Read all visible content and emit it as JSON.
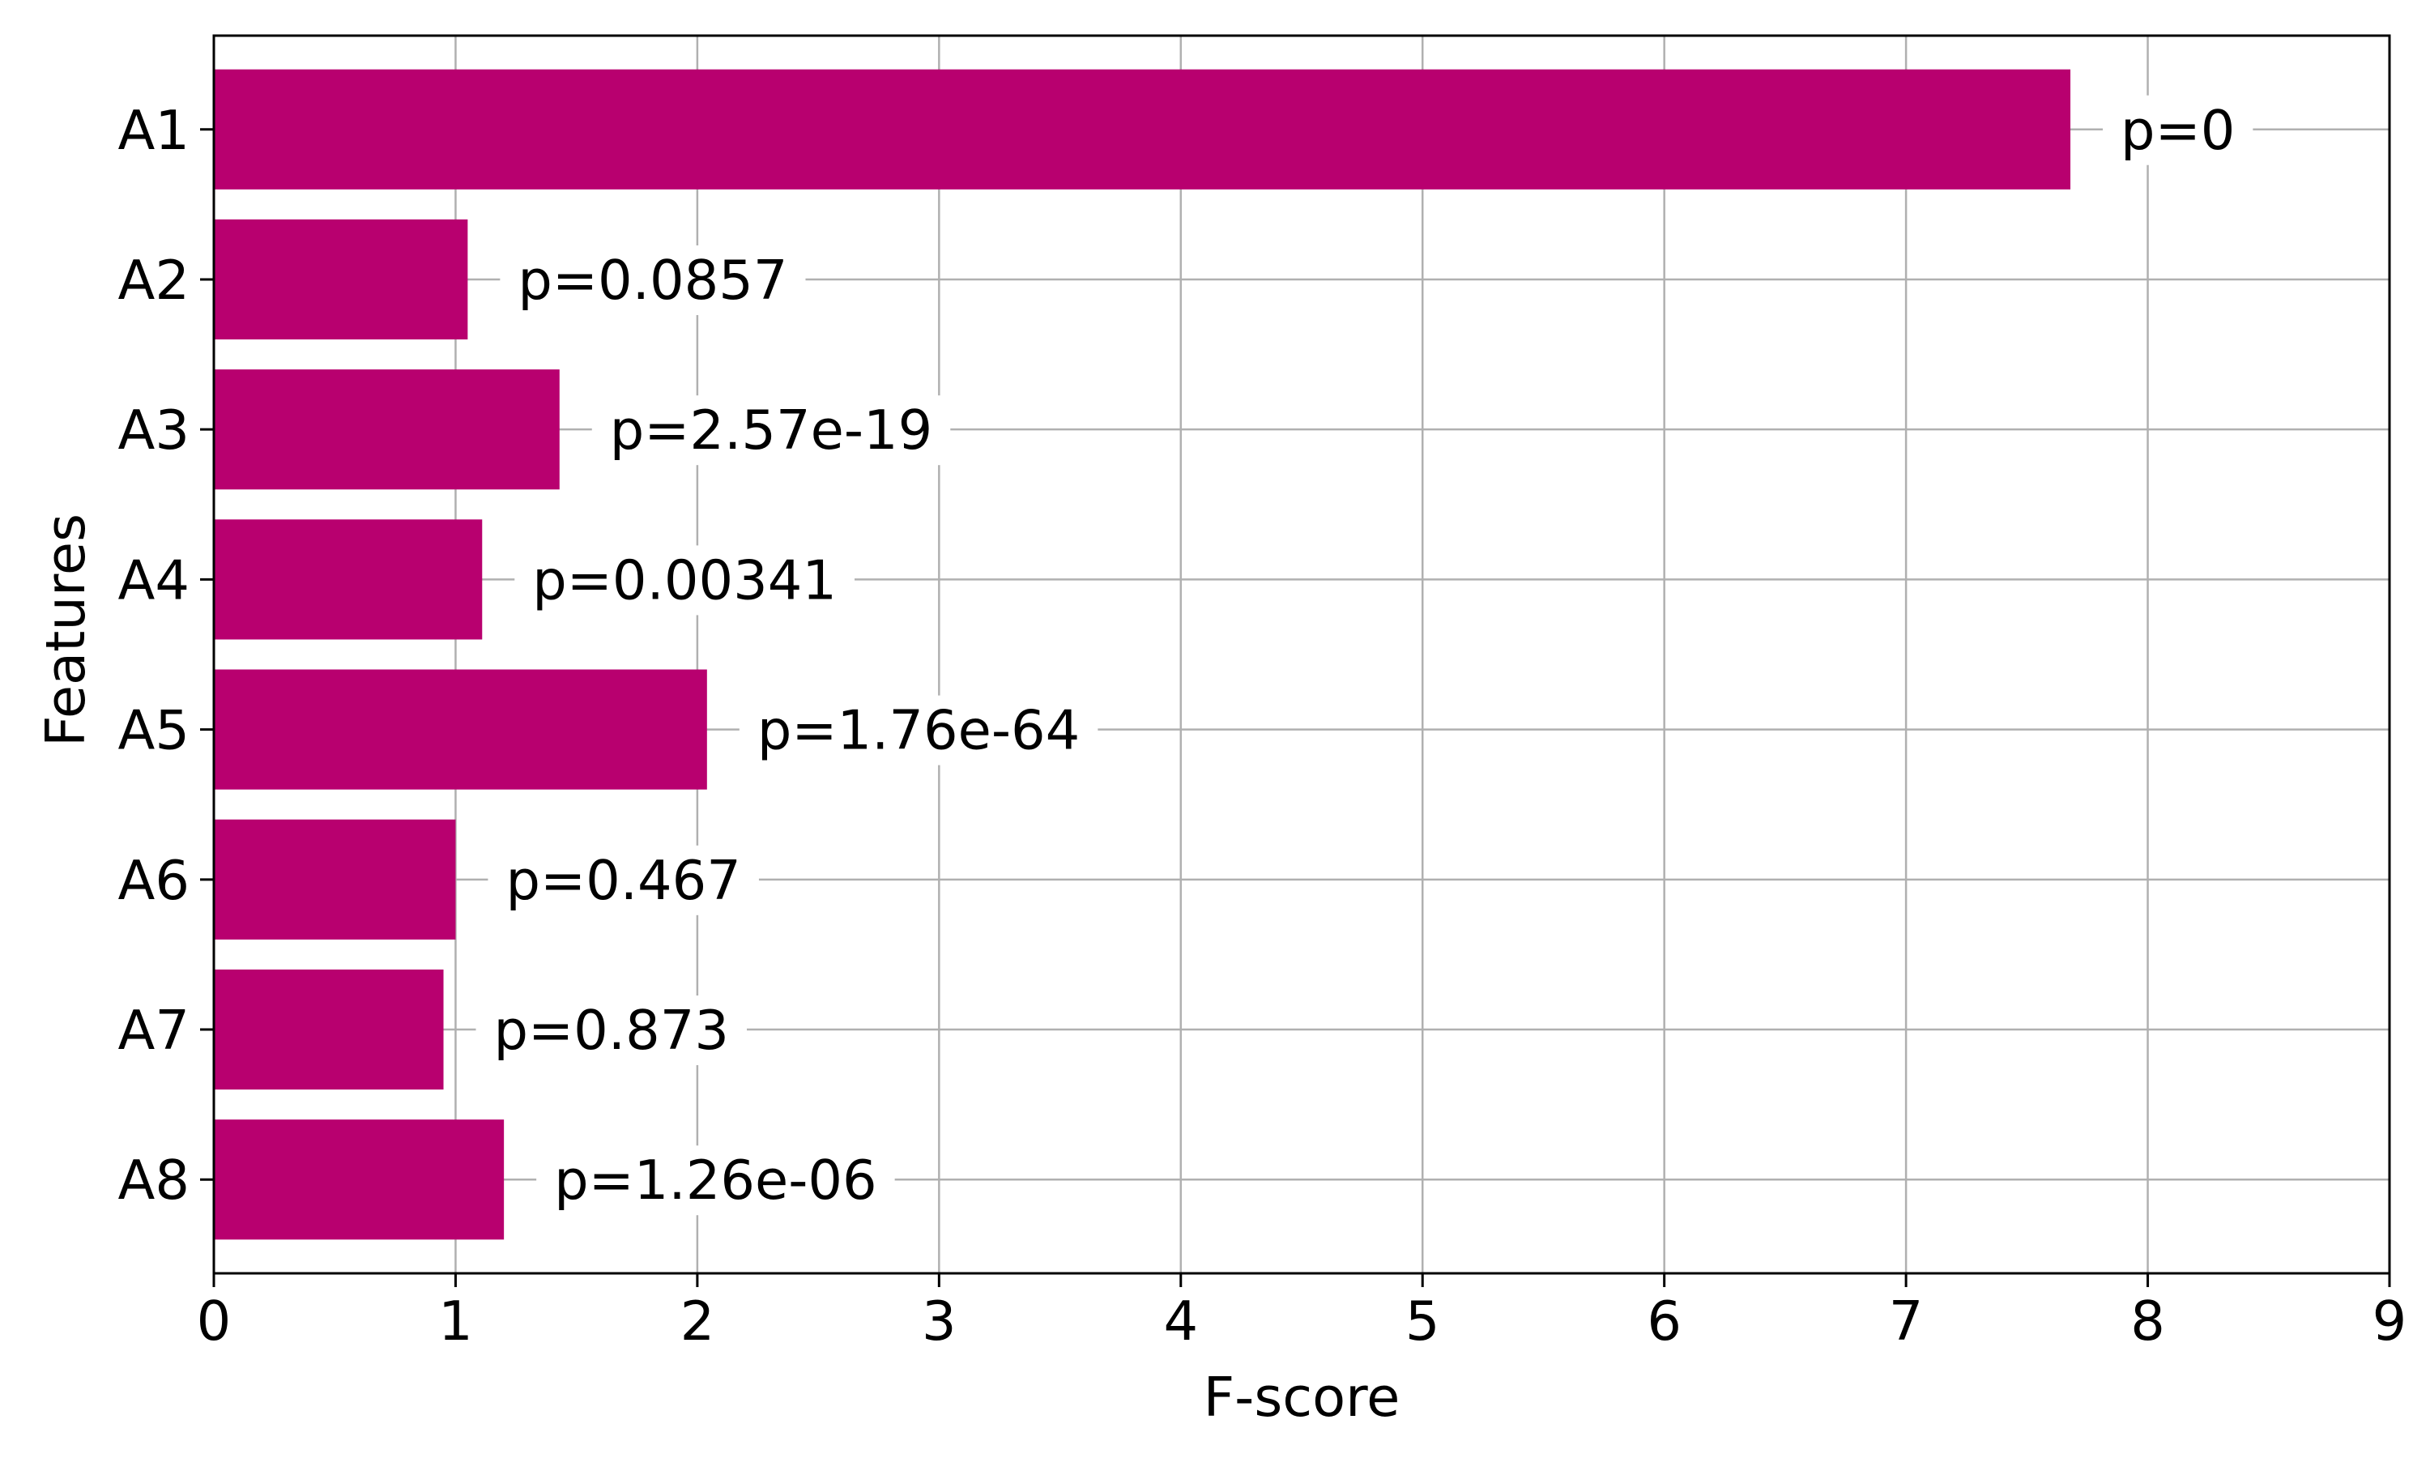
{
  "colors": {
    "bar": "#b8006f",
    "grid": "#b0b0b0",
    "axis": "#000000",
    "background": "#ffffff"
  },
  "chart_data": {
    "type": "bar",
    "orientation": "horizontal",
    "categories": [
      "A1",
      "A2",
      "A3",
      "A4",
      "A5",
      "A6",
      "A7",
      "A8"
    ],
    "values": [
      7.68,
      1.05,
      1.43,
      1.11,
      2.04,
      1.0,
      0.95,
      1.2
    ],
    "bar_labels": [
      "p=0",
      "p=0.0857",
      "p=2.57e-19",
      "p=0.00341",
      "p=1.76e-64",
      "p=0.467",
      "p=0.873",
      "p=1.26e-06"
    ],
    "xlabel": "F-score",
    "ylabel": "Features",
    "xlim": [
      0,
      9
    ],
    "xticks": [
      0,
      1,
      2,
      3,
      4,
      5,
      6,
      7,
      8,
      9
    ],
    "grid": true,
    "legend": "none"
  }
}
